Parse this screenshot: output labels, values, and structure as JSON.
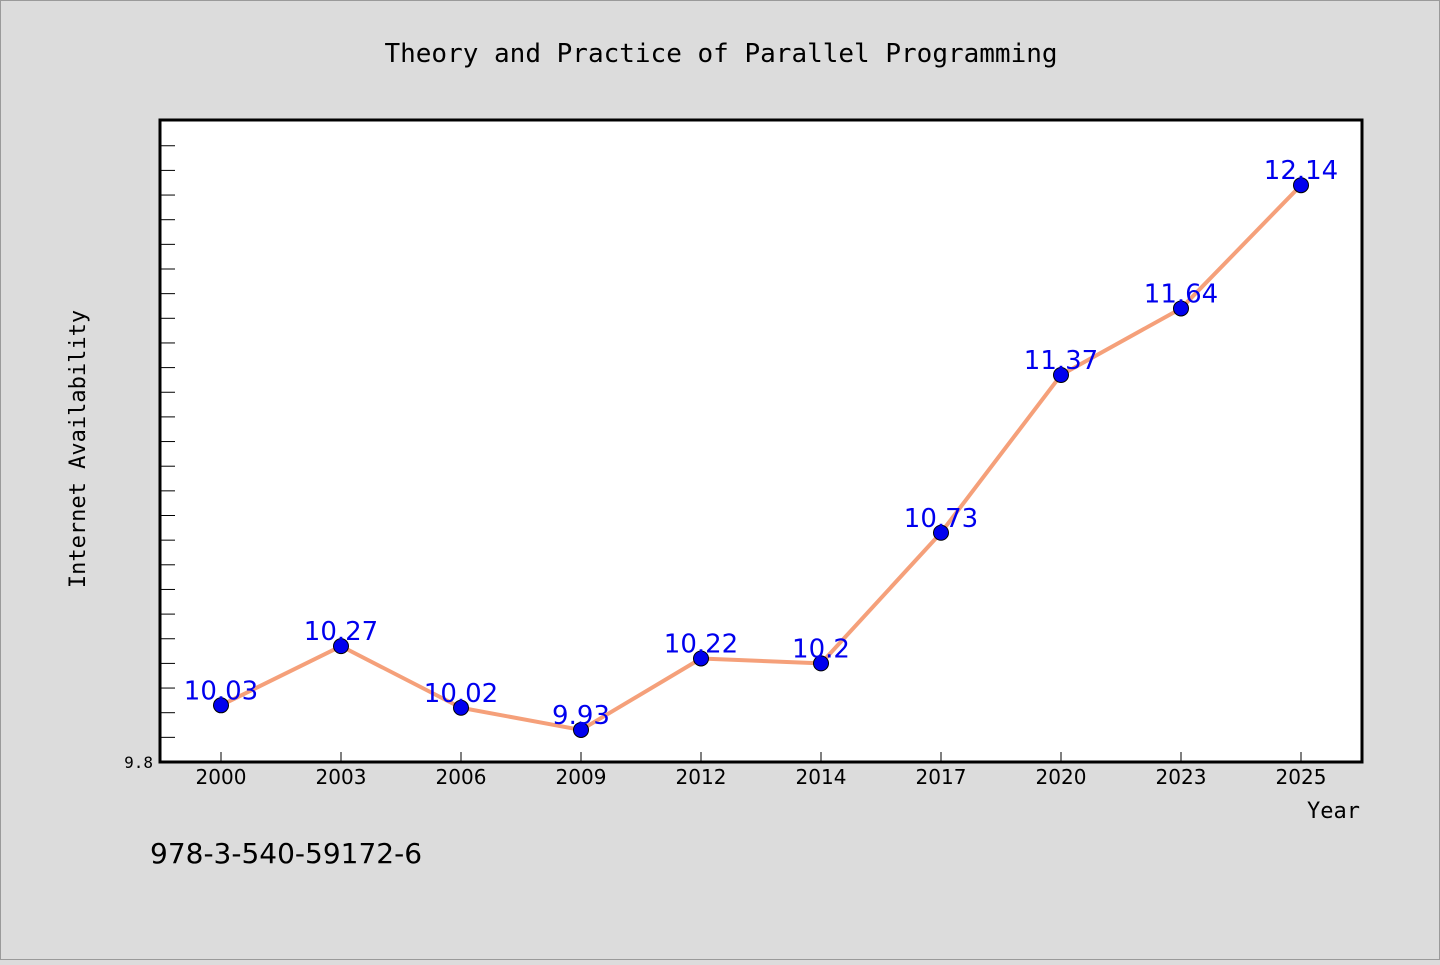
{
  "chart_data": {
    "type": "line",
    "title": "Theory and Practice of Parallel Programming",
    "xlabel": "Year",
    "ylabel": "Internet Availability",
    "categories": [
      "2000",
      "2003",
      "2006",
      "2009",
      "2012",
      "2014",
      "2017",
      "2020",
      "2023",
      "2025"
    ],
    "series": [
      {
        "values": [
          10.03,
          10.27,
          10.02,
          9.93,
          10.22,
          10.2,
          10.73,
          11.37,
          11.64,
          12.14
        ],
        "labels": [
          "10.03",
          "10.27",
          "10.02",
          "9.93",
          "10.22",
          "10.2",
          "10.73",
          "11.37",
          "11.64",
          "12.14"
        ],
        "line_color": "#f5a07a",
        "marker_color": "#0000ee",
        "label_color": "#0000ee"
      }
    ],
    "ylim": [
      9.8,
      12.4
    ],
    "y_tick_label": "9.8",
    "grid": false,
    "legend": false
  },
  "footer_text": "978-3-540-59172-6",
  "colors": {
    "background": "#dcdcdc",
    "plot_background": "#ffffff",
    "axis": "#000000"
  }
}
